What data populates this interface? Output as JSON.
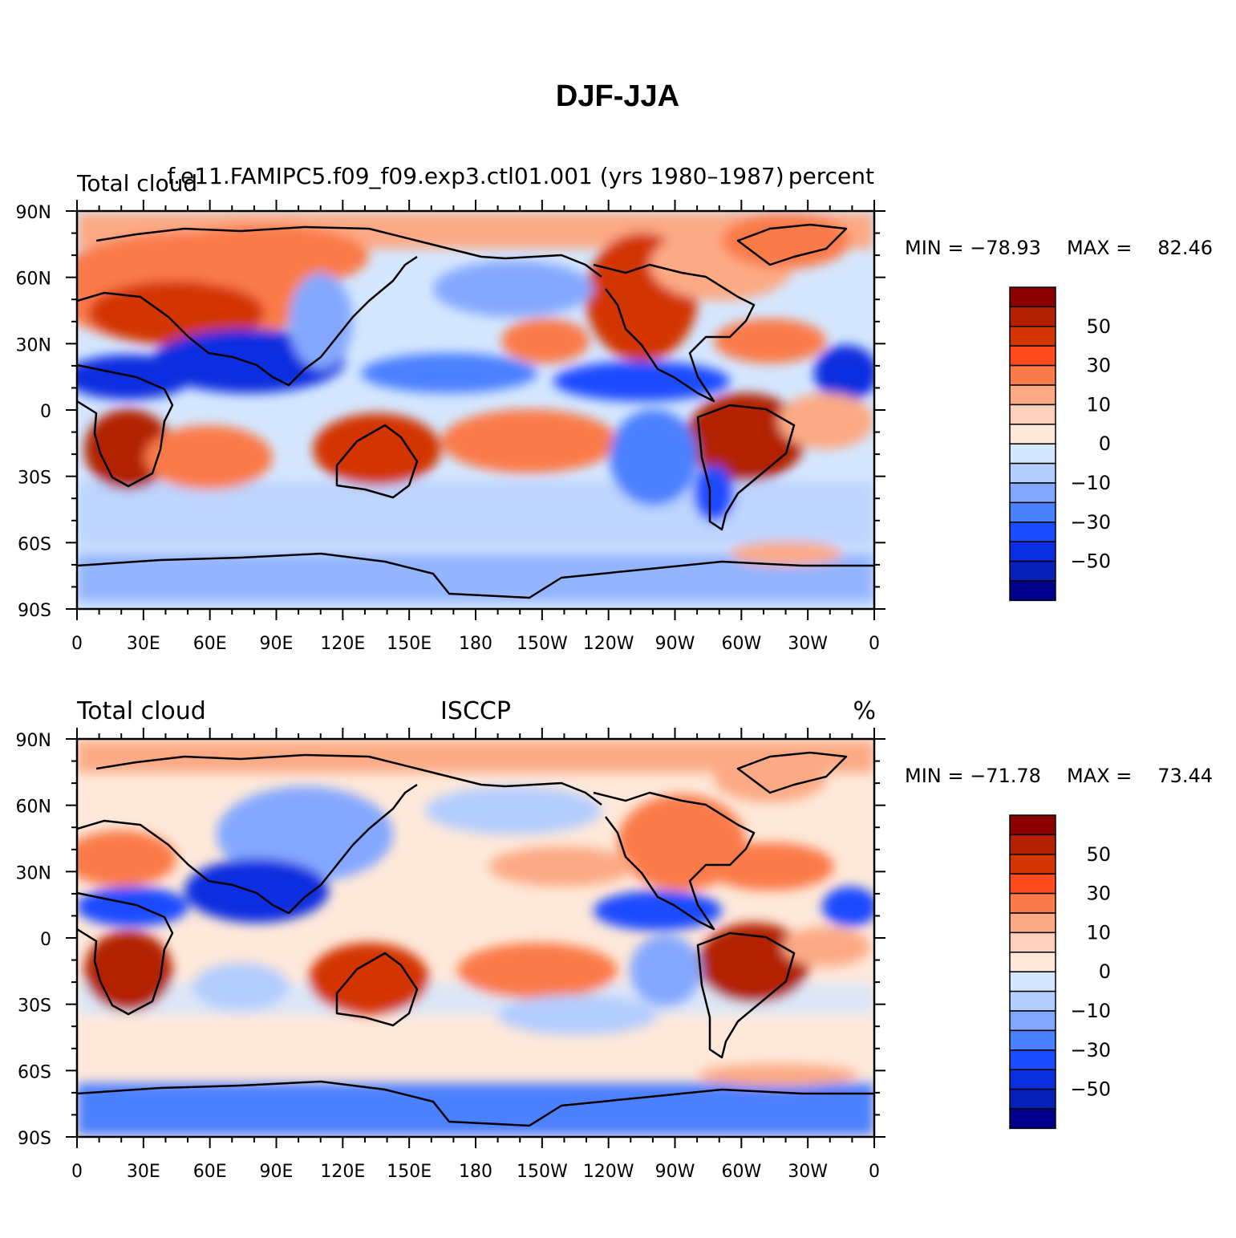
{
  "title": "DJF-JJA",
  "lat_ticks": [
    "90N",
    "60N",
    "30N",
    "0",
    "30S",
    "60S",
    "90S"
  ],
  "lon_ticks": [
    "0",
    "30E",
    "60E",
    "90E",
    "120E",
    "150E",
    "180",
    "150W",
    "120W",
    "90W",
    "60W",
    "30W",
    "0"
  ],
  "colorbar": {
    "levels": [
      -70,
      -60,
      -50,
      -40,
      -30,
      -20,
      -10,
      -5,
      0,
      5,
      10,
      20,
      30,
      40,
      50,
      60,
      70
    ],
    "labels": [
      "50",
      "30",
      "10",
      "0",
      "−10",
      "−30",
      "−50"
    ],
    "colors": [
      "#8b0000",
      "#b22000",
      "#d33600",
      "#ff4b1e",
      "#fb7a4a",
      "#fcaa85",
      "#fdd0bb",
      "#fee8d9",
      "#d4e7ff",
      "#b4cdff",
      "#84a8ff",
      "#4b80ff",
      "#1b4cff",
      "#0a2fe0",
      "#0620b8",
      "#00008b"
    ]
  },
  "panels": [
    {
      "left_title": "Total cloud",
      "center_title": "f.e11.FAMIPC5.f09_f09.exp3.ctl01.001 (yrs 1980–1987)",
      "right_title": "percent",
      "min_label": "MIN = −78.93",
      "max_label": "MAX =",
      "max_value": "82.46",
      "stats": {
        "min": -78.93,
        "max": 82.46
      }
    },
    {
      "left_title": "Total cloud",
      "center_title": "ISCCP",
      "right_title": "%",
      "min_label": "MIN = −71.78",
      "max_label": "MAX =",
      "max_value": "73.44",
      "stats": {
        "min": -71.78,
        "max": 73.44
      }
    }
  ]
}
